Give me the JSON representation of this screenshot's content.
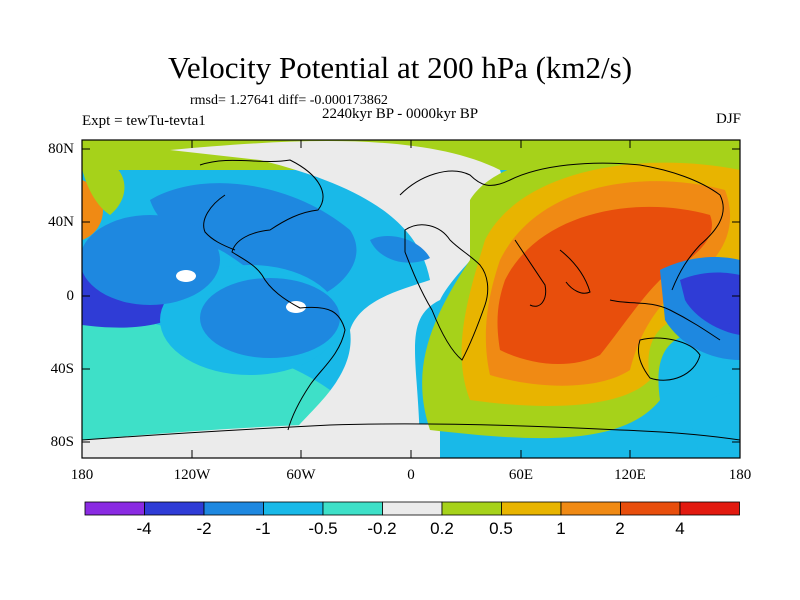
{
  "title": "Velocity Potential at 200 hPa (km2/s)",
  "stats_line": "rmsd= 1.27641 diff= -0.000173862",
  "period": "2240kyr BP - 0000kyr BP",
  "experiment": "Expt = tewTu-tevta1",
  "season": "DJF",
  "y_axis_labels": [
    "80N",
    "40N",
    "0",
    "40S",
    "80S"
  ],
  "x_axis_labels": [
    "180",
    "120W",
    "60W",
    "0",
    "60E",
    "120E",
    "180"
  ],
  "colorbar": {
    "labels": [
      "-4",
      "-2",
      "-1",
      "-0.5",
      "-0.2",
      "0.2",
      "0.5",
      "1",
      "2",
      "4"
    ],
    "colors": [
      "#8a2be2",
      "#2f3cd6",
      "#1e88e0",
      "#19b9e8",
      "#3ee0c8",
      "#ebebeb",
      "#a6d21a",
      "#e8b400",
      "#f08a14",
      "#e84e0c",
      "#e21a10"
    ]
  },
  "chart_data": {
    "type": "heatmap",
    "title": "Velocity Potential at 200 hPa (km2/s)",
    "x_range": [
      -180,
      180
    ],
    "y_range": [
      -90,
      90
    ],
    "contour_levels": [
      -4,
      -2,
      -1,
      -0.5,
      -0.2,
      0.2,
      0.5,
      1,
      2,
      4
    ]
  }
}
